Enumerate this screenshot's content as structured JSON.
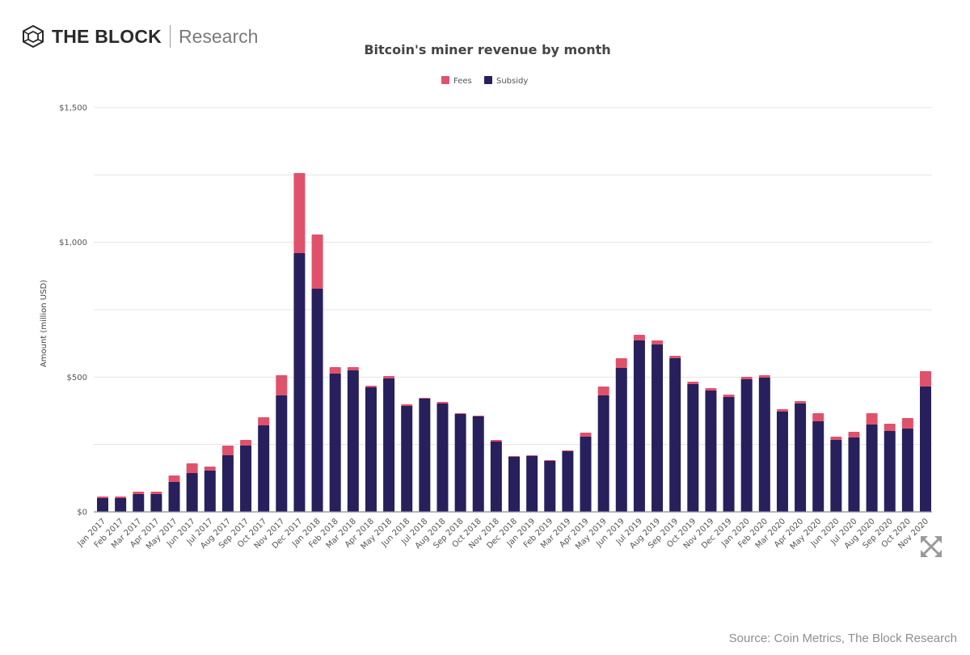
{
  "header": {
    "brand_name": "THE BLOCK",
    "brand_sub": "Research"
  },
  "footer": {
    "source": "Source: Coin Metrics, The Block Research"
  },
  "icons": {
    "logo": "cube-logo-icon",
    "expand": "expand-arrows-icon"
  },
  "colors": {
    "fees": "#e0526b",
    "subsidy": "#28205c"
  },
  "chart_data": {
    "type": "bar",
    "stacked": true,
    "title": "Bitcoin's miner revenue by month",
    "xlabel": "",
    "ylabel": "Amount (million USD)",
    "ylim": [
      0,
      1500
    ],
    "yticks": [
      0,
      500,
      1000,
      1500
    ],
    "ytick_labels": [
      "$0",
      "$500",
      "$1,000",
      "$1,500"
    ],
    "grid": true,
    "legend_position": "top-center",
    "categories": [
      "Jan 2017",
      "Feb 2017",
      "Mar 2017",
      "Apr 2017",
      "May 2017",
      "Jun 2017",
      "Jul 2017",
      "Aug 2017",
      "Sep 2017",
      "Oct 2017",
      "Nov 2017",
      "Dec 2017",
      "Jan 2018",
      "Feb 2018",
      "Mar 2018",
      "Apr 2018",
      "May 2018",
      "Jun 2018",
      "Jul 2018",
      "Aug 2018",
      "Sep 2018",
      "Oct 2018",
      "Nov 2018",
      "Dec 2018",
      "Jan 2019",
      "Feb 2019",
      "Mar 2019",
      "Apr 2019",
      "May 2019",
      "Jun 2019",
      "Jul 2019",
      "Aug 2019",
      "Sep 2019",
      "Oct 2019",
      "Nov 2019",
      "Dec 2019",
      "Jan 2020",
      "Feb 2020",
      "Mar 2020",
      "Apr 2020",
      "May 2020",
      "Jun 2020",
      "Jul 2020",
      "Aug 2020",
      "Sep 2020",
      "Oct 2020",
      "Nov 2020"
    ],
    "series": [
      {
        "name": "Subsidy",
        "values": [
          51,
          51,
          66,
          66,
          111,
          144,
          153,
          210,
          246,
          321,
          432,
          960,
          828,
          513,
          525,
          462,
          495,
          393,
          420,
          402,
          363,
          354,
          261,
          204,
          207,
          189,
          225,
          279,
          432,
          534,
          636,
          621,
          570,
          474,
          450,
          426,
          492,
          498,
          372,
          402,
          336,
          267,
          276,
          324,
          300,
          309,
          465
        ]
      },
      {
        "name": "Fees",
        "values": [
          6,
          6,
          9,
          9,
          24,
          36,
          15,
          36,
          21,
          30,
          75,
          297,
          201,
          24,
          12,
          6,
          9,
          6,
          3,
          6,
          3,
          3,
          6,
          3,
          3,
          3,
          3,
          15,
          33,
          36,
          21,
          15,
          9,
          9,
          9,
          9,
          9,
          9,
          9,
          9,
          30,
          12,
          21,
          42,
          27,
          39,
          57
        ]
      }
    ],
    "legend": [
      "Fees",
      "Subsidy"
    ]
  }
}
